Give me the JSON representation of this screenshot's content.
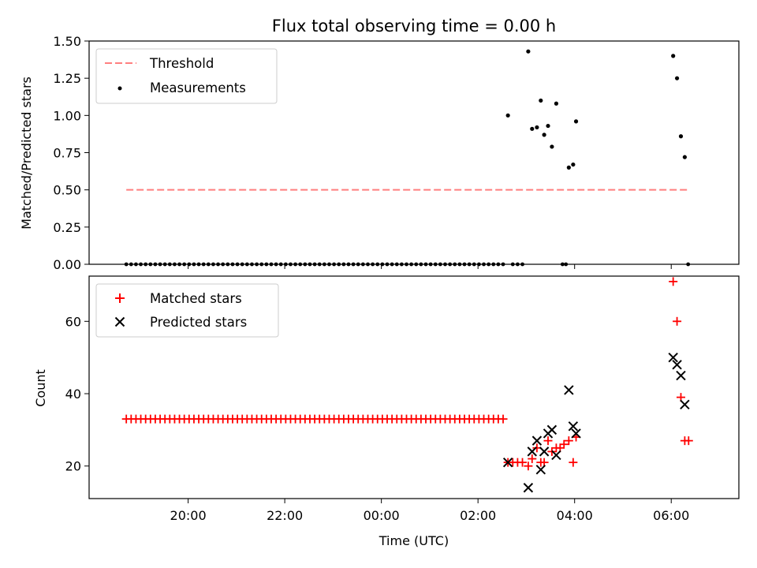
{
  "chart_data": [
    {
      "type": "scatter",
      "title": "Flux total observing time = 0.00 h",
      "ylabel": "Matched/Predicted stars",
      "xlabel": "",
      "ylim": [
        0,
        1.5
      ],
      "yticks": [
        "0.00",
        "0.25",
        "0.50",
        "0.75",
        "1.00",
        "1.25",
        "1.50"
      ],
      "legend_position": "top-left",
      "legend": [
        "Threshold",
        "Measurements"
      ],
      "threshold": {
        "value": 0.5,
        "x_start": 18.72,
        "x_end": 30.35,
        "color": "#ff7f7f"
      },
      "measurements_zero_x": [
        18.72,
        18.82,
        18.92,
        19.02,
        19.12,
        19.22,
        19.32,
        19.42,
        19.52,
        19.62,
        19.72,
        19.82,
        19.92,
        20.02,
        20.12,
        20.22,
        20.32,
        20.42,
        20.52,
        20.62,
        20.72,
        20.82,
        20.92,
        21.02,
        21.12,
        21.22,
        21.32,
        21.42,
        21.52,
        21.62,
        21.72,
        21.82,
        21.92,
        22.02,
        22.12,
        22.22,
        22.32,
        22.42,
        22.52,
        22.62,
        22.72,
        22.82,
        22.92,
        23.02,
        23.12,
        23.22,
        23.32,
        23.42,
        23.52,
        23.62,
        23.72,
        23.82,
        23.92,
        24.02,
        24.12,
        24.22,
        24.32,
        24.42,
        24.52,
        24.62,
        24.72,
        24.82,
        24.92,
        25.02,
        25.12,
        25.22,
        25.32,
        25.42,
        25.52,
        25.62,
        25.72,
        25.82,
        25.92,
        26.02,
        26.12,
        26.22,
        26.32,
        26.42,
        26.52,
        26.72,
        26.82,
        26.92,
        27.75,
        27.82,
        30.35
      ],
      "measurements": [
        {
          "x": 26.62,
          "y": 1.0
        },
        {
          "x": 27.04,
          "y": 1.43
        },
        {
          "x": 27.12,
          "y": 0.91
        },
        {
          "x": 27.22,
          "y": 0.92
        },
        {
          "x": 27.3,
          "y": 1.1
        },
        {
          "x": 27.37,
          "y": 0.87
        },
        {
          "x": 27.45,
          "y": 0.93
        },
        {
          "x": 27.53,
          "y": 0.79
        },
        {
          "x": 27.62,
          "y": 1.08
        },
        {
          "x": 27.88,
          "y": 0.65
        },
        {
          "x": 27.97,
          "y": 0.67
        },
        {
          "x": 28.03,
          "y": 0.96
        },
        {
          "x": 30.04,
          "y": 1.4
        },
        {
          "x": 30.12,
          "y": 1.25
        },
        {
          "x": 30.2,
          "y": 0.86
        },
        {
          "x": 30.28,
          "y": 0.72
        }
      ]
    },
    {
      "type": "scatter",
      "title": "",
      "ylabel": "Count",
      "xlabel": "Time (UTC)",
      "xlim": [
        17.95,
        31.4
      ],
      "ylim": [
        11,
        72.5
      ],
      "yticks": [
        "20",
        "40",
        "60"
      ],
      "xticks": [
        {
          "x": 20,
          "label": "20:00"
        },
        {
          "x": 22,
          "label": "22:00"
        },
        {
          "x": 24,
          "label": "00:00"
        },
        {
          "x": 26,
          "label": "02:00"
        },
        {
          "x": 28,
          "label": "04:00"
        },
        {
          "x": 30,
          "label": "06:00"
        }
      ],
      "legend_position": "top-left",
      "legend": [
        "Matched stars",
        "Predicted stars"
      ],
      "matched_constant": {
        "y": 33,
        "x_start": 18.72,
        "x_end": 26.52,
        "step": 0.1
      },
      "matched_stars": [
        {
          "x": 26.62,
          "y": 21
        },
        {
          "x": 26.72,
          "y": 21
        },
        {
          "x": 26.82,
          "y": 21
        },
        {
          "x": 26.92,
          "y": 21
        },
        {
          "x": 27.04,
          "y": 20
        },
        {
          "x": 27.12,
          "y": 22
        },
        {
          "x": 27.22,
          "y": 25
        },
        {
          "x": 27.3,
          "y": 21
        },
        {
          "x": 27.37,
          "y": 21
        },
        {
          "x": 27.45,
          "y": 27
        },
        {
          "x": 27.53,
          "y": 24
        },
        {
          "x": 27.62,
          "y": 25
        },
        {
          "x": 27.7,
          "y": 25
        },
        {
          "x": 27.78,
          "y": 26
        },
        {
          "x": 27.88,
          "y": 27
        },
        {
          "x": 27.97,
          "y": 21
        },
        {
          "x": 28.03,
          "y": 28
        },
        {
          "x": 30.04,
          "y": 71
        },
        {
          "x": 30.12,
          "y": 60
        },
        {
          "x": 30.2,
          "y": 39
        },
        {
          "x": 30.28,
          "y": 27
        },
        {
          "x": 30.36,
          "y": 27
        }
      ],
      "predicted_stars": [
        {
          "x": 26.62,
          "y": 21
        },
        {
          "x": 27.04,
          "y": 14
        },
        {
          "x": 27.12,
          "y": 24
        },
        {
          "x": 27.22,
          "y": 27
        },
        {
          "x": 27.3,
          "y": 19
        },
        {
          "x": 27.37,
          "y": 24
        },
        {
          "x": 27.45,
          "y": 29
        },
        {
          "x": 27.53,
          "y": 30
        },
        {
          "x": 27.62,
          "y": 23
        },
        {
          "x": 27.88,
          "y": 41
        },
        {
          "x": 27.97,
          "y": 31
        },
        {
          "x": 28.03,
          "y": 29
        },
        {
          "x": 30.04,
          "y": 50
        },
        {
          "x": 30.12,
          "y": 48
        },
        {
          "x": 30.2,
          "y": 45
        },
        {
          "x": 30.28,
          "y": 37
        }
      ],
      "colors": {
        "matched": "#ff0000",
        "predicted": "#000000"
      }
    }
  ]
}
